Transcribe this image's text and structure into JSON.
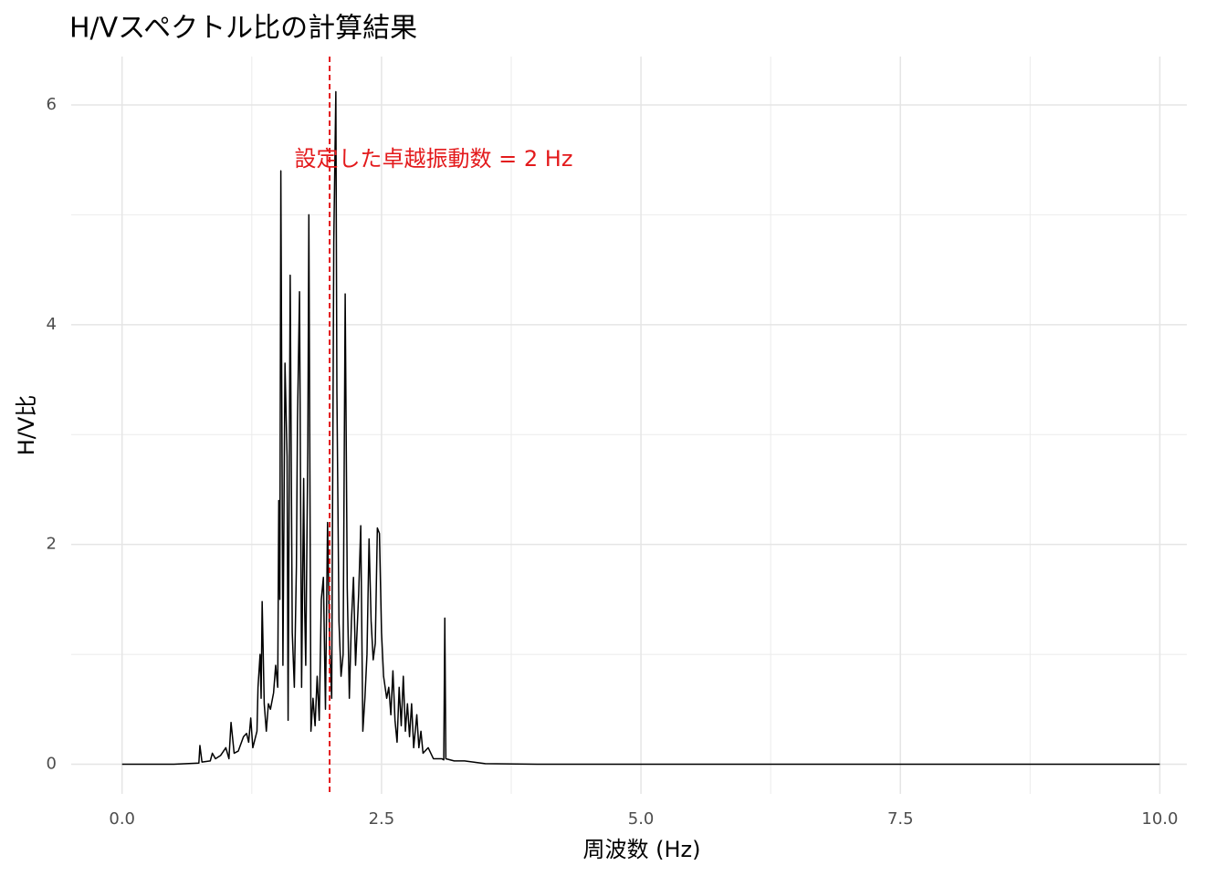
{
  "chart_data": {
    "type": "line",
    "title": "H/Vスペクトル比の計算結果",
    "x_label": "周波数 (Hz)",
    "y_label": "H/V比",
    "annotation": "設定した卓越振動数 = 2 Hz",
    "vline": 2,
    "vline_color": "#e31a1c",
    "xlim": [
      -0.49,
      10.26
    ],
    "ylim": [
      -0.27,
      6.44
    ],
    "xticks": [
      {
        "value": 0,
        "label": "0.0"
      },
      2.5,
      {
        "value": 5,
        "label": "5.0"
      },
      7.5,
      {
        "value": 10,
        "label": "10.0"
      }
    ],
    "yticks": [
      0,
      2,
      4,
      6
    ],
    "x_minor_ticks": [
      1.25,
      3.75,
      6.25,
      8.75
    ],
    "y_minor_ticks": [
      1,
      3,
      5
    ],
    "grid": true,
    "x": [
      0,
      0.5,
      0.74,
      0.75,
      0.77,
      0.85,
      0.87,
      0.9,
      0.95,
      1.0,
      1.03,
      1.05,
      1.08,
      1.12,
      1.17,
      1.2,
      1.22,
      1.24,
      1.26,
      1.3,
      1.31,
      1.33,
      1.34,
      1.35,
      1.37,
      1.39,
      1.41,
      1.43,
      1.46,
      1.48,
      1.5,
      1.51,
      1.52,
      1.53,
      1.55,
      1.57,
      1.59,
      1.6,
      1.62,
      1.64,
      1.66,
      1.68,
      1.69,
      1.71,
      1.73,
      1.75,
      1.76,
      1.77,
      1.79,
      1.8,
      1.82,
      1.84,
      1.86,
      1.88,
      1.9,
      1.92,
      1.94,
      1.96,
      1.98,
      2.0,
      2.02,
      2.04,
      2.06,
      2.07,
      2.09,
      2.11,
      2.13,
      2.15,
      2.17,
      2.19,
      2.21,
      2.23,
      2.25,
      2.28,
      2.3,
      2.32,
      2.34,
      2.36,
      2.38,
      2.4,
      2.42,
      2.44,
      2.46,
      2.48,
      2.5,
      2.52,
      2.55,
      2.57,
      2.59,
      2.61,
      2.63,
      2.65,
      2.67,
      2.69,
      2.71,
      2.73,
      2.75,
      2.77,
      2.79,
      2.81,
      2.84,
      2.86,
      2.88,
      2.9,
      2.95,
      3.0,
      3.08,
      3.1,
      3.11,
      3.12,
      3.2,
      3.3,
      3.5,
      4,
      6,
      10
    ],
    "series": [
      {
        "name": "H/V",
        "color": "#000000",
        "values": [
          0,
          0,
          0.01,
          0.17,
          0.02,
          0.03,
          0.1,
          0.05,
          0.08,
          0.15,
          0.05,
          0.38,
          0.1,
          0.12,
          0.25,
          0.28,
          0.2,
          0.42,
          0.15,
          0.3,
          0.7,
          1.0,
          0.6,
          1.48,
          0.55,
          0.3,
          0.55,
          0.5,
          0.65,
          0.9,
          0.7,
          2.4,
          1.5,
          5.4,
          0.9,
          3.65,
          2.8,
          0.4,
          4.45,
          1.2,
          0.7,
          1.8,
          3.1,
          4.3,
          0.7,
          2.6,
          1.4,
          0.9,
          2.9,
          5.0,
          0.3,
          0.6,
          0.35,
          0.8,
          0.4,
          1.5,
          1.7,
          0.5,
          2.2,
          1.1,
          0.6,
          4.75,
          6.12,
          3.4,
          1.3,
          0.8,
          1.0,
          4.28,
          1.6,
          0.6,
          1.3,
          1.7,
          0.9,
          1.55,
          2.17,
          0.3,
          0.6,
          1.0,
          2.05,
          1.3,
          0.95,
          1.1,
          2.15,
          2.1,
          1.2,
          0.8,
          0.6,
          0.7,
          0.45,
          0.85,
          0.4,
          0.2,
          0.7,
          0.35,
          0.8,
          0.3,
          0.55,
          0.25,
          0.55,
          0.15,
          0.45,
          0.15,
          0.3,
          0.1,
          0.15,
          0.05,
          0.05,
          0.04,
          1.33,
          0.05,
          0.03,
          0.03,
          0.005,
          0,
          0,
          0
        ]
      }
    ]
  }
}
